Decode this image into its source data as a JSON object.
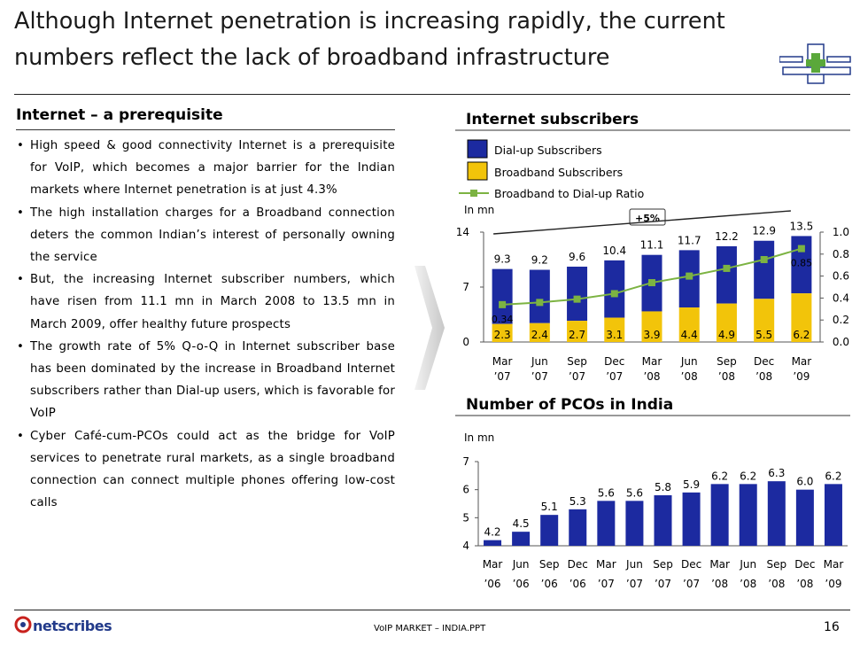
{
  "slide": {
    "title_line1": "Although Internet penetration is increasing rapidly, the current",
    "title_line2": "numbers reflect the lack of broadband infrastructure",
    "left_heading": "Internet – a prerequisite",
    "bullets": [
      "High speed & good connectivity Internet is a prerequisite for VoIP, which becomes a major barrier for the Indian markets where Internet penetration is at just 4.3%",
      "The high installation charges for a Broadband connection deters the common Indian’s interest of personally owning the service",
      "But, the increasing Internet subscriber numbers, which have risen from 11.1 mn in March 2008 to 13.5 mn in March 2009, offer healthy future prospects",
      "The growth rate of 5% Q-o-Q in Internet subscriber base has been dominated by the increase in Broadband Internet subscribers rather than Dial-up users, which is favorable for VoIP",
      "Cyber Café-cum-PCOs could act as the bridge for VoIP services to penetrate rural markets, as a single broadband connection can connect multiple phones offering low-cost calls"
    ],
    "bullet_symbol": "•"
  },
  "footer": {
    "logo": "netscribes",
    "doc_name": "VoIP MARKET – INDIA.PPT",
    "page_number": "16"
  },
  "colors": {
    "dialup": "#1c2aa0",
    "broadband": "#f2c40a",
    "ratio_line": "#7cb342",
    "logo_red": "#c8221e",
    "logo_blue": "#223a8a"
  },
  "chart_data": [
    {
      "type": "bar",
      "stacked": true,
      "title": "Internet subscribers",
      "unit_label": "In mn",
      "categories": [
        [
          "Mar",
          "’07"
        ],
        [
          "Jun",
          "’07"
        ],
        [
          "Sep",
          "’07"
        ],
        [
          "Dec",
          "’07"
        ],
        [
          "Mar",
          "’08"
        ],
        [
          "Jun",
          "’08"
        ],
        [
          "Sep",
          "’08"
        ],
        [
          "Dec",
          "’08"
        ],
        [
          "Mar",
          "’09"
        ]
      ],
      "totals": [
        9.3,
        9.2,
        9.6,
        10.4,
        11.1,
        11.7,
        12.2,
        12.9,
        13.5
      ],
      "series": [
        {
          "name": "Dial-up Subscribers",
          "values": [
            7.0,
            6.8,
            6.9,
            7.3,
            7.2,
            7.3,
            7.3,
            7.4,
            7.3
          ]
        },
        {
          "name": "Broadband Subscribers",
          "values": [
            2.3,
            2.4,
            2.7,
            3.1,
            3.9,
            4.4,
            4.9,
            5.5,
            6.2
          ]
        }
      ],
      "line_series": {
        "name": "Broadband to Dial-up Ratio",
        "values": [
          0.34,
          0.36,
          0.39,
          0.44,
          0.54,
          0.6,
          0.67,
          0.75,
          0.85
        ]
      },
      "line_labels": {
        "first": "0.34",
        "last": "0.85"
      },
      "growth_callout": "+5%",
      "ylim": [
        0,
        14
      ],
      "yticks": [
        "0",
        "7",
        "14"
      ],
      "y2lim": [
        0,
        1.0
      ],
      "y2ticks": [
        "0.0",
        "0.2",
        "0.4",
        "0.6",
        "0.8",
        "1.0"
      ]
    },
    {
      "type": "bar",
      "title": "Number of PCOs in India",
      "unit_label": "In mn",
      "categories": [
        [
          "Mar",
          "’06"
        ],
        [
          "Jun",
          "’06"
        ],
        [
          "Sep",
          "’06"
        ],
        [
          "Dec",
          "’06"
        ],
        [
          "Mar",
          "’07"
        ],
        [
          "Jun",
          "’07"
        ],
        [
          "Sep",
          "’07"
        ],
        [
          "Dec",
          "’07"
        ],
        [
          "Mar",
          "’08"
        ],
        [
          "Jun",
          "’08"
        ],
        [
          "Sep",
          "’08"
        ],
        [
          "Dec",
          "’08"
        ],
        [
          "Mar",
          "’09"
        ]
      ],
      "values": [
        4.2,
        4.5,
        5.1,
        5.3,
        5.6,
        5.6,
        5.8,
        5.9,
        6.2,
        6.2,
        6.3,
        6.0,
        6.2
      ],
      "value_labels": [
        "4.2",
        "4.5",
        "5.1",
        "5.3",
        "5.6",
        "5.6",
        "5.8",
        "5.9",
        "6.2",
        "6.2",
        "6.3",
        "6.0",
        "6.2"
      ],
      "ylim": [
        4,
        7
      ],
      "yticks": [
        "4",
        "5",
        "6",
        "7"
      ]
    }
  ]
}
